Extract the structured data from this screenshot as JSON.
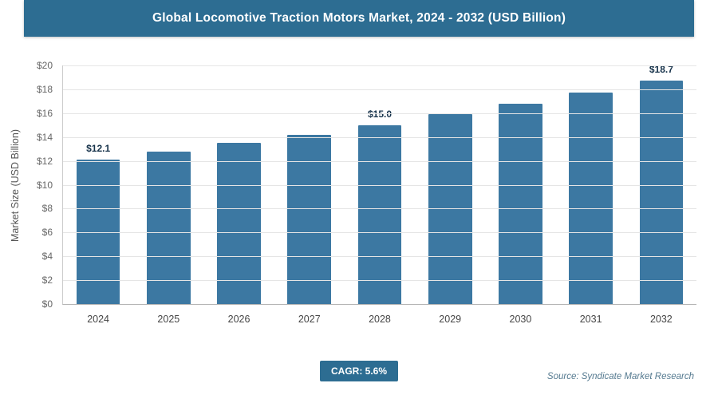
{
  "header": {
    "title": "Global Locomotive Traction Motors Market, 2024 - 2032 (USD Billion)"
  },
  "chart_data": {
    "type": "bar",
    "title": "Global Locomotive Traction Motors Market, 2024 - 2032 (USD Billion)",
    "categories": [
      "2024",
      "2025",
      "2026",
      "2027",
      "2028",
      "2029",
      "2030",
      "2031",
      "2032"
    ],
    "values": [
      12.1,
      12.8,
      13.5,
      14.2,
      15.0,
      15.9,
      16.8,
      17.7,
      18.7
    ],
    "bar_labels": [
      "$12.1",
      "",
      "",
      "",
      "$15.0",
      "",
      "",
      "",
      "$18.7"
    ],
    "xlabel": "",
    "ylabel": "Market Size (USD Billion)",
    "ylim": [
      0,
      20
    ],
    "ytick_step": 2,
    "ytick_prefix": "$",
    "grid": true,
    "legend": "none",
    "bar_color": "#3c78a2"
  },
  "footer": {
    "cagr_label": "CAGR: 5.6%",
    "source": "Source: Syndicate Market Research"
  },
  "colors": {
    "header_bg": "#2d6d92",
    "bar": "#3c78a2",
    "badge_bg": "#2d6d92",
    "grid": "#e5e5e5",
    "source_text": "#557a90"
  }
}
